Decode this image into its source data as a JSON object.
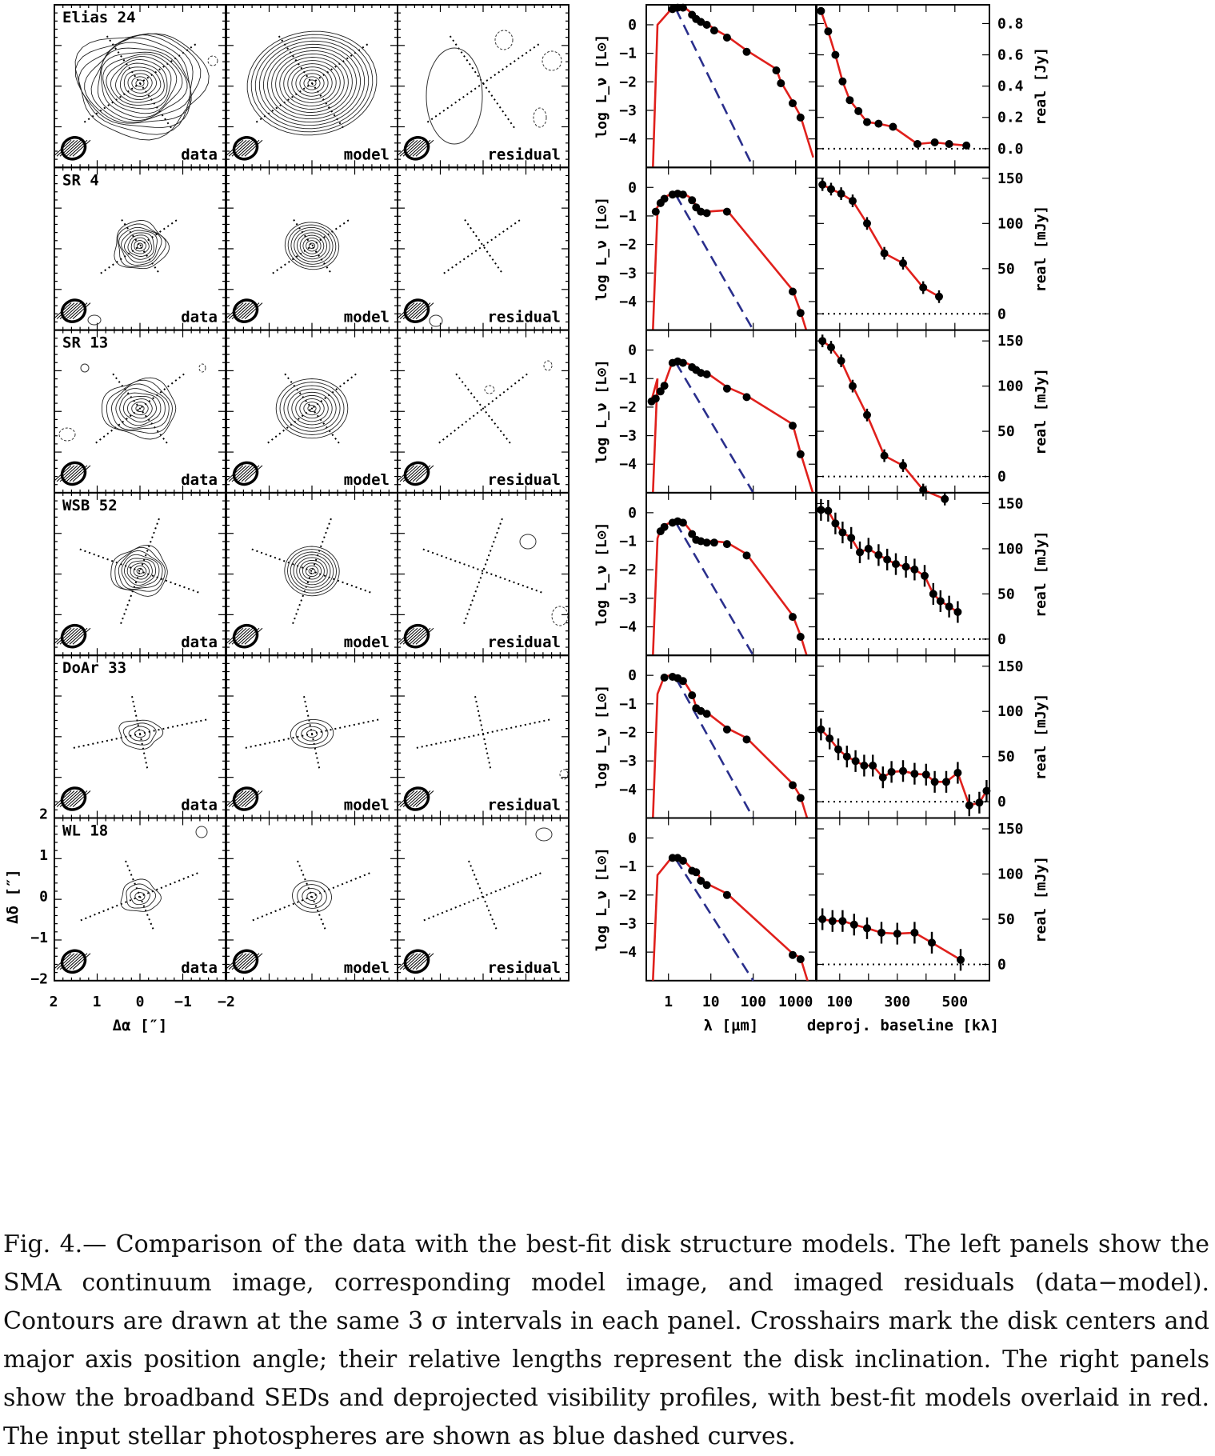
{
  "figure": {
    "rows": [
      {
        "name": "Elias 24",
        "axis_id": "elias24"
      },
      {
        "name": "SR 4",
        "axis_id": "sr4"
      },
      {
        "name": "SR 13",
        "axis_id": "sr13"
      },
      {
        "name": "WSB 52",
        "axis_id": "wsb52"
      },
      {
        "name": "DoAr 33",
        "axis_id": "doar33"
      },
      {
        "name": "WL 18",
        "axis_id": "wl18"
      }
    ],
    "image_panel_labels": [
      "data",
      "model",
      "residual"
    ],
    "image_axes": {
      "xlabel": "Δα [″]",
      "ylabel": "Δδ [″]",
      "x_ticks": [
        "2",
        "1",
        "0",
        "−1",
        "−2"
      ],
      "y_ticks": [
        "2",
        "1",
        "0",
        "−1",
        "−2"
      ]
    },
    "sed_axes": {
      "xlabel": "λ [μm]",
      "ylabel": "log L_ν [L⊙]",
      "x_ticks": [
        "1",
        "10",
        "100",
        "1000"
      ],
      "y_ticks": [
        "0",
        "−1",
        "−2",
        "−3",
        "−4"
      ],
      "xlim": [
        0.3,
        3000
      ],
      "ylim": [
        -5,
        0.7
      ],
      "log_x": true
    },
    "vis_axes": {
      "xlabel": "deproj. baseline [kλ]",
      "x_ticks": [
        "100",
        "300",
        "500"
      ],
      "xlim": [
        20,
        620
      ]
    },
    "colors": {
      "model": "#e0201c",
      "photosphere": "#2a2f8c",
      "ink": "#000000"
    }
  },
  "chart_data": [
    {
      "type": "scatter",
      "target": "Elias 24",
      "panel": "SED",
      "xlabel": "λ [μm]",
      "ylabel": "log L_ν [L⊙]",
      "x": [
        1.25,
        1.65,
        2.2,
        3.6,
        4.5,
        5.8,
        8.0,
        12,
        24,
        70,
        350,
        450,
        850,
        1300
      ],
      "y": [
        0.55,
        0.6,
        0.6,
        0.35,
        0.2,
        0.1,
        0.0,
        -0.2,
        -0.45,
        -0.95,
        -1.6,
        -2.05,
        -2.75,
        -3.25
      ]
    },
    {
      "type": "scatter",
      "target": "Elias 24",
      "panel": "visibility",
      "ylabel": "real [Jy]",
      "y_ticks": [
        "0.0",
        "0.2",
        "0.4",
        "0.6",
        "0.8"
      ],
      "ylim": [
        -0.12,
        0.92
      ],
      "x": [
        35,
        60,
        85,
        110,
        135,
        165,
        195,
        235,
        285,
        370,
        430,
        480,
        540
      ],
      "y": [
        0.88,
        0.75,
        0.6,
        0.43,
        0.31,
        0.24,
        0.17,
        0.16,
        0.14,
        0.03,
        0.04,
        0.03,
        0.02
      ]
    },
    {
      "type": "scatter",
      "target": "SR 4",
      "panel": "SED",
      "x": [
        0.5,
        0.65,
        0.8,
        1.25,
        1.65,
        2.2,
        3.6,
        4.5,
        5.8,
        8.0,
        24,
        850,
        1300
      ],
      "y": [
        -0.85,
        -0.55,
        -0.4,
        -0.25,
        -0.22,
        -0.25,
        -0.45,
        -0.7,
        -0.85,
        -0.9,
        -0.85,
        -3.65,
        -4.4
      ]
    },
    {
      "type": "scatter",
      "target": "SR 4",
      "panel": "visibility",
      "ylabel": "real [mJy]",
      "y_ticks": [
        "0",
        "50",
        "100",
        "150"
      ],
      "ylim": [
        -18,
        162
      ],
      "x": [
        40,
        70,
        105,
        145,
        195,
        255,
        320,
        390,
        445
      ],
      "y": [
        143,
        138,
        133,
        125,
        100,
        67,
        56,
        29,
        19
      ]
    },
    {
      "type": "scatter",
      "target": "SR 13",
      "panel": "SED",
      "x": [
        0.4,
        0.5,
        0.65,
        0.8,
        1.25,
        1.65,
        2.2,
        3.6,
        4.5,
        5.8,
        8.0,
        24,
        70,
        850,
        1300
      ],
      "y": [
        -1.8,
        -1.7,
        -1.45,
        -1.25,
        -0.45,
        -0.4,
        -0.45,
        -0.6,
        -0.7,
        -0.8,
        -0.85,
        -1.35,
        -1.65,
        -2.65,
        -3.65
      ]
    },
    {
      "type": "scatter",
      "target": "SR 13",
      "panel": "visibility",
      "ylabel": "real [mJy]",
      "y_ticks": [
        "0",
        "50",
        "100",
        "150"
      ],
      "ylim": [
        -18,
        162
      ],
      "x": [
        40,
        70,
        105,
        145,
        195,
        255,
        320,
        390,
        465
      ],
      "y": [
        150,
        143,
        128,
        100,
        68,
        23,
        12,
        -15,
        -25
      ]
    },
    {
      "type": "scatter",
      "target": "WSB 52",
      "panel": "SED",
      "x": [
        0.65,
        0.8,
        1.25,
        1.65,
        2.2,
        3.6,
        4.5,
        5.8,
        8.0,
        12,
        24,
        70,
        850,
        1300
      ],
      "y": [
        -0.65,
        -0.5,
        -0.35,
        -0.3,
        -0.35,
        -0.75,
        -0.95,
        -1.0,
        -1.05,
        -1.05,
        -1.1,
        -1.5,
        -3.65,
        -4.35
      ]
    },
    {
      "type": "scatter",
      "target": "WSB 52",
      "panel": "visibility",
      "ylabel": "real [mJy]",
      "y_ticks": [
        "0",
        "50",
        "100",
        "150"
      ],
      "ylim": [
        -18,
        162
      ],
      "x": [
        35,
        60,
        85,
        110,
        140,
        170,
        200,
        235,
        265,
        295,
        330,
        360,
        395,
        425,
        450,
        480,
        510
      ],
      "y": [
        143,
        142,
        128,
        118,
        112,
        96,
        100,
        93,
        88,
        83,
        80,
        77,
        70,
        50,
        42,
        36,
        30
      ]
    },
    {
      "type": "scatter",
      "target": "DoAr 33",
      "panel": "SED",
      "x": [
        0.8,
        1.25,
        1.65,
        2.2,
        3.6,
        4.5,
        5.8,
        8.0,
        24,
        70,
        850,
        1300
      ],
      "y": [
        -0.08,
        -0.05,
        -0.1,
        -0.2,
        -0.7,
        -1.15,
        -1.25,
        -1.35,
        -1.9,
        -2.25,
        -3.85,
        -4.3
      ]
    },
    {
      "type": "scatter",
      "target": "DoAr 33",
      "panel": "visibility",
      "ylabel": "real [mJy]",
      "y_ticks": [
        "0",
        "50",
        "100",
        "150"
      ],
      "ylim": [
        -18,
        162
      ],
      "x": [
        35,
        65,
        95,
        125,
        155,
        185,
        215,
        250,
        280,
        320,
        360,
        400,
        430,
        470,
        510,
        550,
        585,
        610
      ],
      "y": [
        80,
        70,
        58,
        50,
        45,
        40,
        40,
        27,
        33,
        34,
        31,
        30,
        22,
        22,
        32,
        -4,
        -1,
        12
      ]
    },
    {
      "type": "scatter",
      "target": "WL 18",
      "panel": "SED",
      "x": [
        1.25,
        1.65,
        2.2,
        3.6,
        4.5,
        5.8,
        8.0,
        24,
        850,
        1300
      ],
      "y": [
        -0.7,
        -0.7,
        -0.8,
        -1.15,
        -1.2,
        -1.5,
        -1.65,
        -2.0,
        -4.1,
        -4.25
      ]
    },
    {
      "type": "scatter",
      "target": "WL 18",
      "panel": "visibility",
      "ylabel": "real [mJy]",
      "y_ticks": [
        "0",
        "50",
        "100",
        "150"
      ],
      "ylim": [
        -18,
        162
      ],
      "x": [
        40,
        75,
        110,
        150,
        195,
        245,
        300,
        360,
        420,
        520
      ],
      "y": [
        50,
        48,
        48,
        44,
        40,
        35,
        34,
        35,
        24,
        5
      ]
    }
  ],
  "caption": {
    "label": "Fig. 4.—",
    "text": "Comparison of the data with the best-fit disk structure models. The left panels show the SMA continuum image, corresponding model image, and imaged residuals (data−model). Contours are drawn at the same 3 σ intervals in each panel. Crosshairs mark the disk centers and major axis position angle; their relative lengths represent the disk inclination. The right panels show the broadband SEDs and deprojected visibility profiles, with best-fit models overlaid in red. The input stellar photospheres are shown as blue dashed curves."
  }
}
